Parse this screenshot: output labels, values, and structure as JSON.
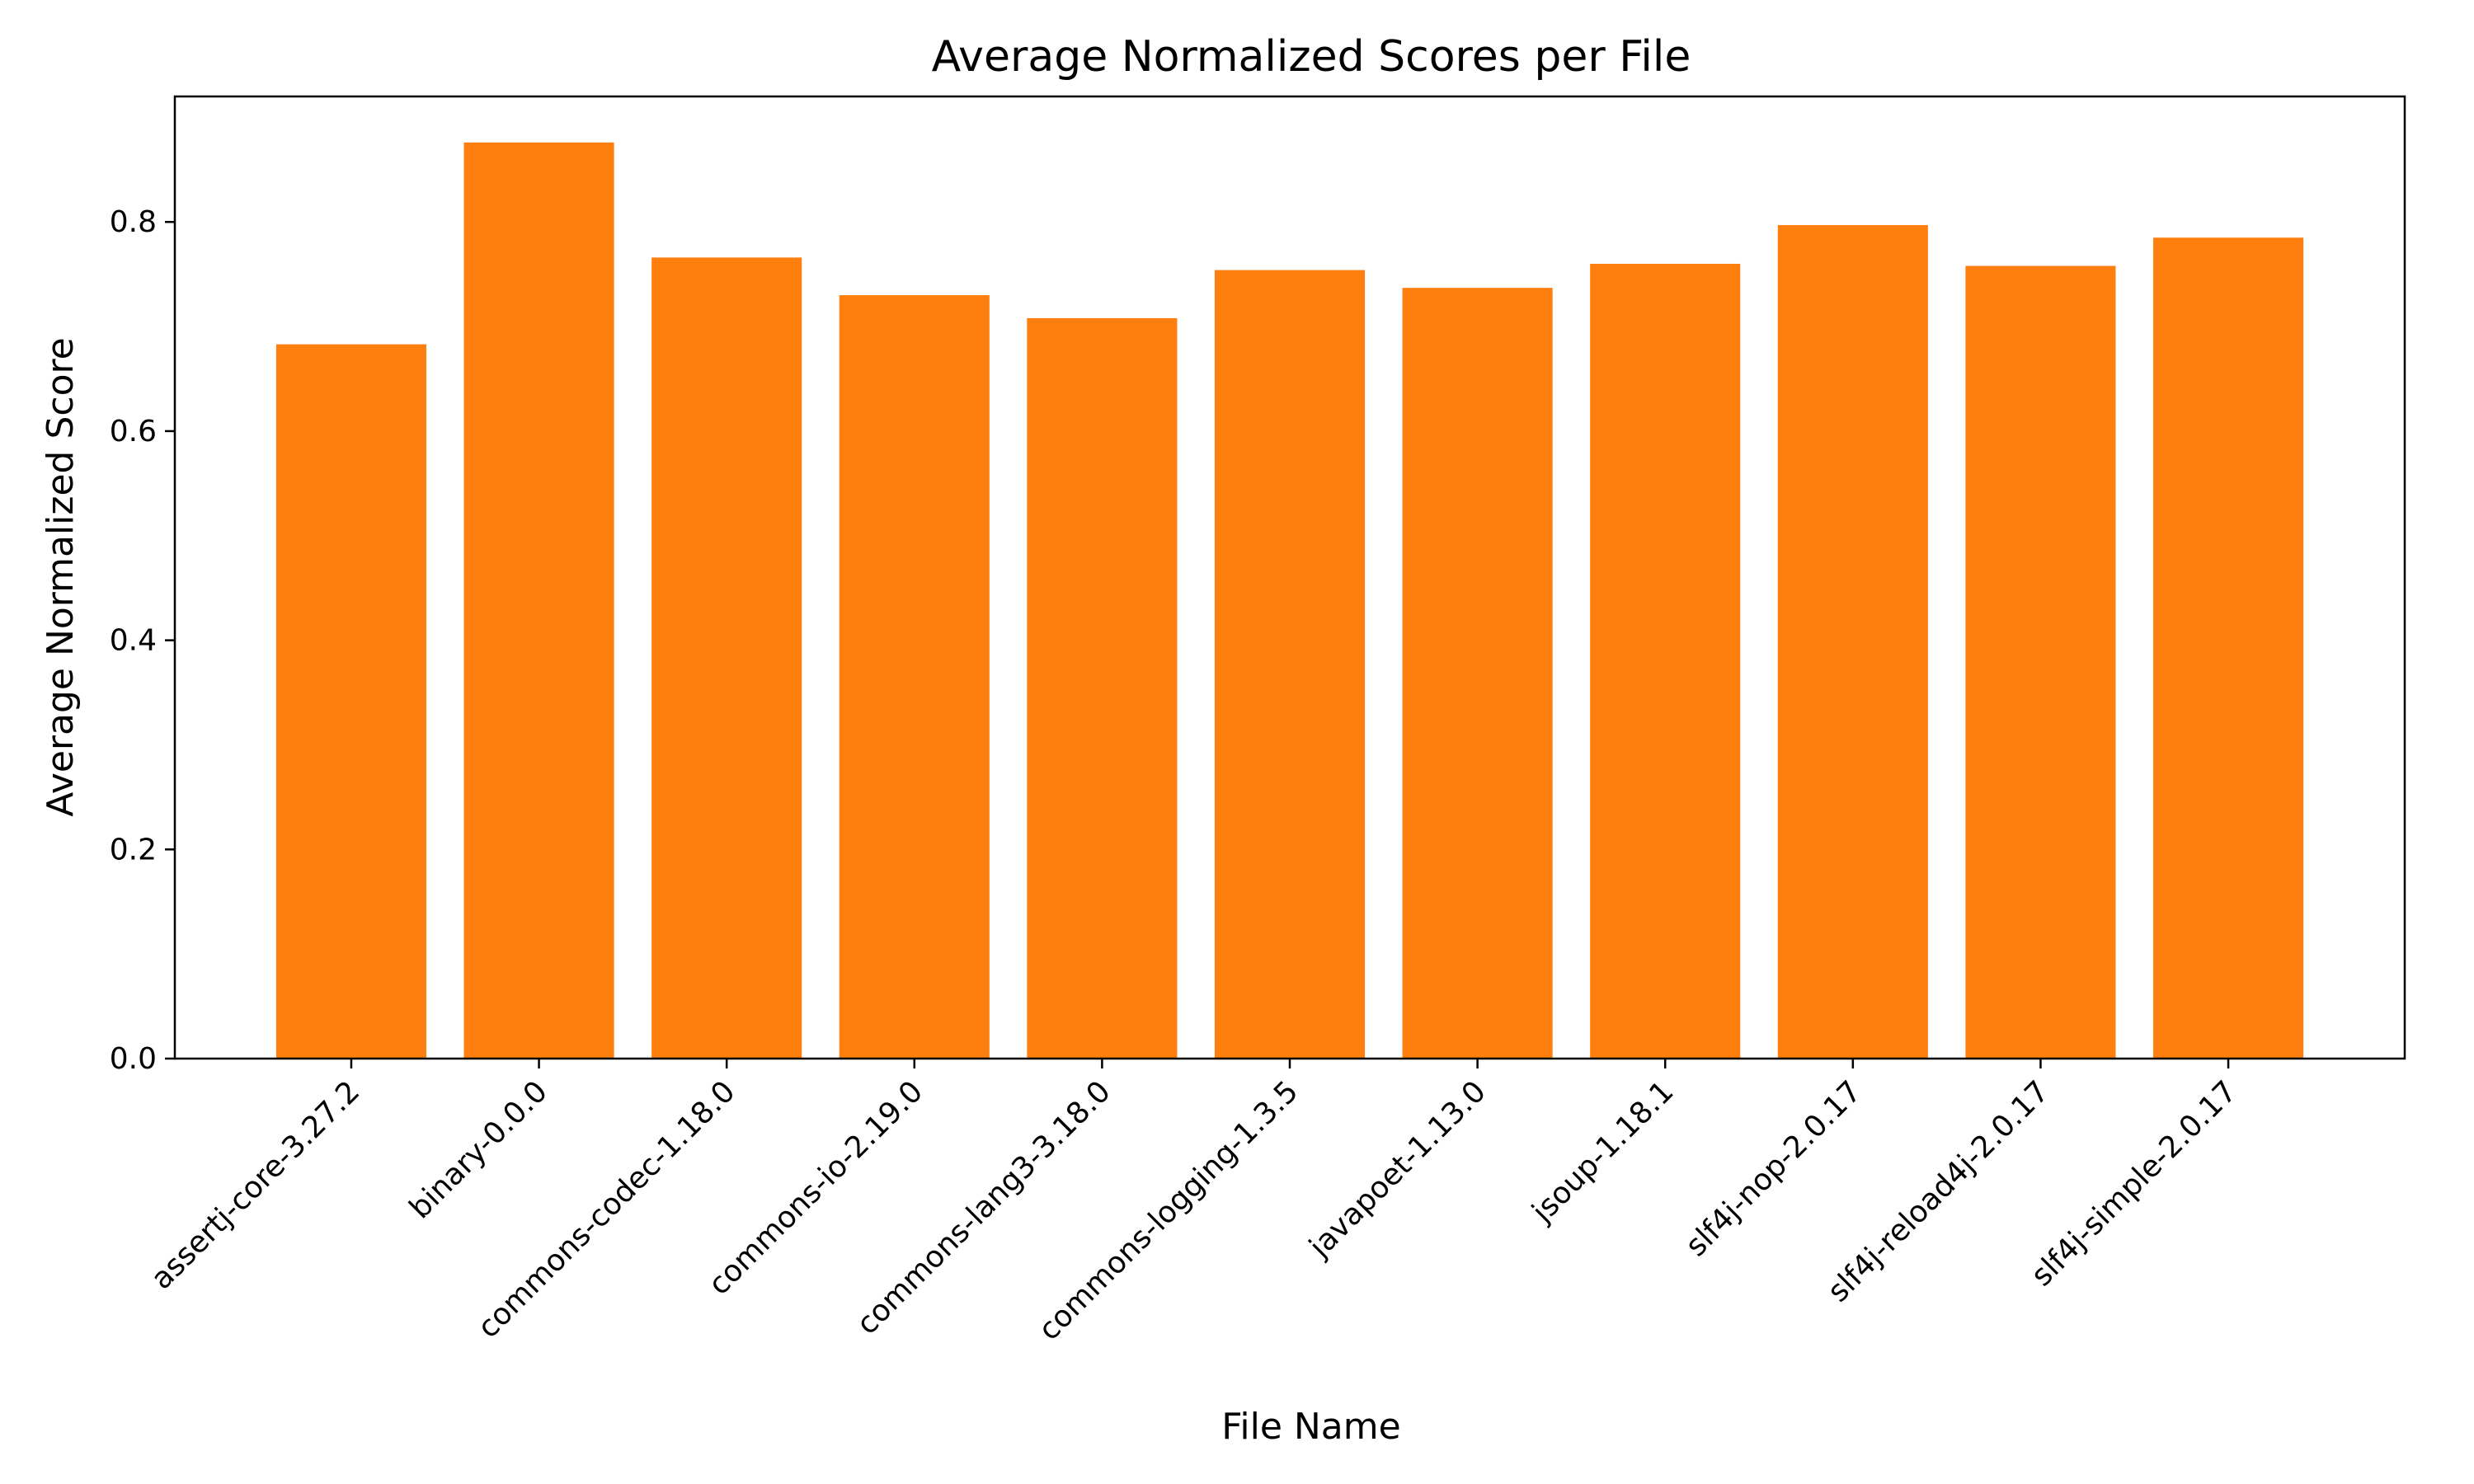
{
  "chart_data": {
    "type": "bar",
    "title": "Average Normalized Scores per File",
    "xlabel": "File Name",
    "ylabel": "Average Normalized Score",
    "categories": [
      "assertj-core-3.27.2",
      "binary-0.0.0",
      "commons-codec-1.18.0",
      "commons-io-2.19.0",
      "commons-lang3-3.18.0",
      "commons-logging-1.3.5",
      "javapoet-1.13.0",
      "jsoup-1.18.1",
      "slf4j-nop-2.0.17",
      "slf4j-reload4j-2.0.17",
      "slf4j-simple-2.0.17"
    ],
    "values": [
      0.683,
      0.876,
      0.766,
      0.73,
      0.708,
      0.754,
      0.737,
      0.76,
      0.797,
      0.758,
      0.785
    ],
    "ylim": [
      0,
      0.92
    ],
    "yticks": [
      0.0,
      0.2,
      0.4,
      0.6,
      0.8
    ],
    "ytick_labels": [
      "0.0",
      "0.2",
      "0.4",
      "0.6",
      "0.8"
    ],
    "grid": false,
    "bar_color": "#ff7f0e"
  }
}
